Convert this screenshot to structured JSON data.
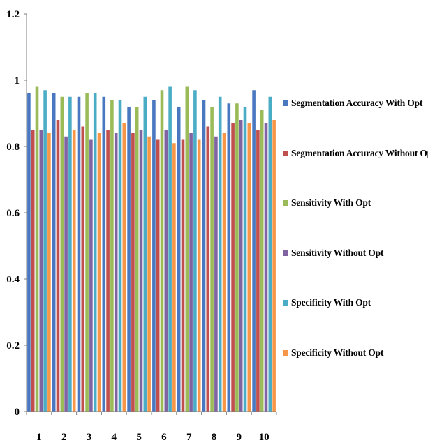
{
  "chart_data": {
    "type": "bar",
    "categories": [
      "1",
      "2",
      "3",
      "4",
      "5",
      "6",
      "7",
      "8",
      "9",
      "10"
    ],
    "ylim": [
      0,
      1.2
    ],
    "yticks": [
      "0",
      "0.2",
      "0.4",
      "0.6",
      "0.8",
      "1",
      "1.2"
    ],
    "grid": false,
    "legend_position": "right",
    "series": [
      {
        "name": "Segmentation Accuracy With Opt",
        "color": "#4a78c0",
        "values": [
          0.96,
          0.96,
          0.95,
          0.95,
          0.92,
          0.94,
          0.92,
          0.94,
          0.93,
          0.97
        ]
      },
      {
        "name": "Segmentation Accuracy Without Opt",
        "color": "#c0504d",
        "values": [
          0.85,
          0.88,
          0.86,
          0.85,
          0.84,
          0.82,
          0.82,
          0.86,
          0.87,
          0.85
        ]
      },
      {
        "name": "Sensitivity With Opt",
        "color": "#9bbb59",
        "values": [
          0.98,
          0.95,
          0.96,
          0.94,
          0.92,
          0.97,
          0.98,
          0.92,
          0.93,
          0.91
        ]
      },
      {
        "name": "Sensitivity Without Opt",
        "color": "#8064a2",
        "values": [
          0.85,
          0.83,
          0.82,
          0.84,
          0.85,
          0.85,
          0.84,
          0.83,
          0.88,
          0.87
        ]
      },
      {
        "name": "Specificity With Opt",
        "color": "#4bacc6",
        "values": [
          0.97,
          0.95,
          0.96,
          0.94,
          0.95,
          0.98,
          0.97,
          0.95,
          0.92,
          0.95
        ]
      },
      {
        "name": "Specificity Without Opt",
        "color": "#f79646",
        "values": [
          0.84,
          0.85,
          0.84,
          0.87,
          0.83,
          0.81,
          0.82,
          0.84,
          0.87,
          0.88
        ]
      }
    ]
  }
}
